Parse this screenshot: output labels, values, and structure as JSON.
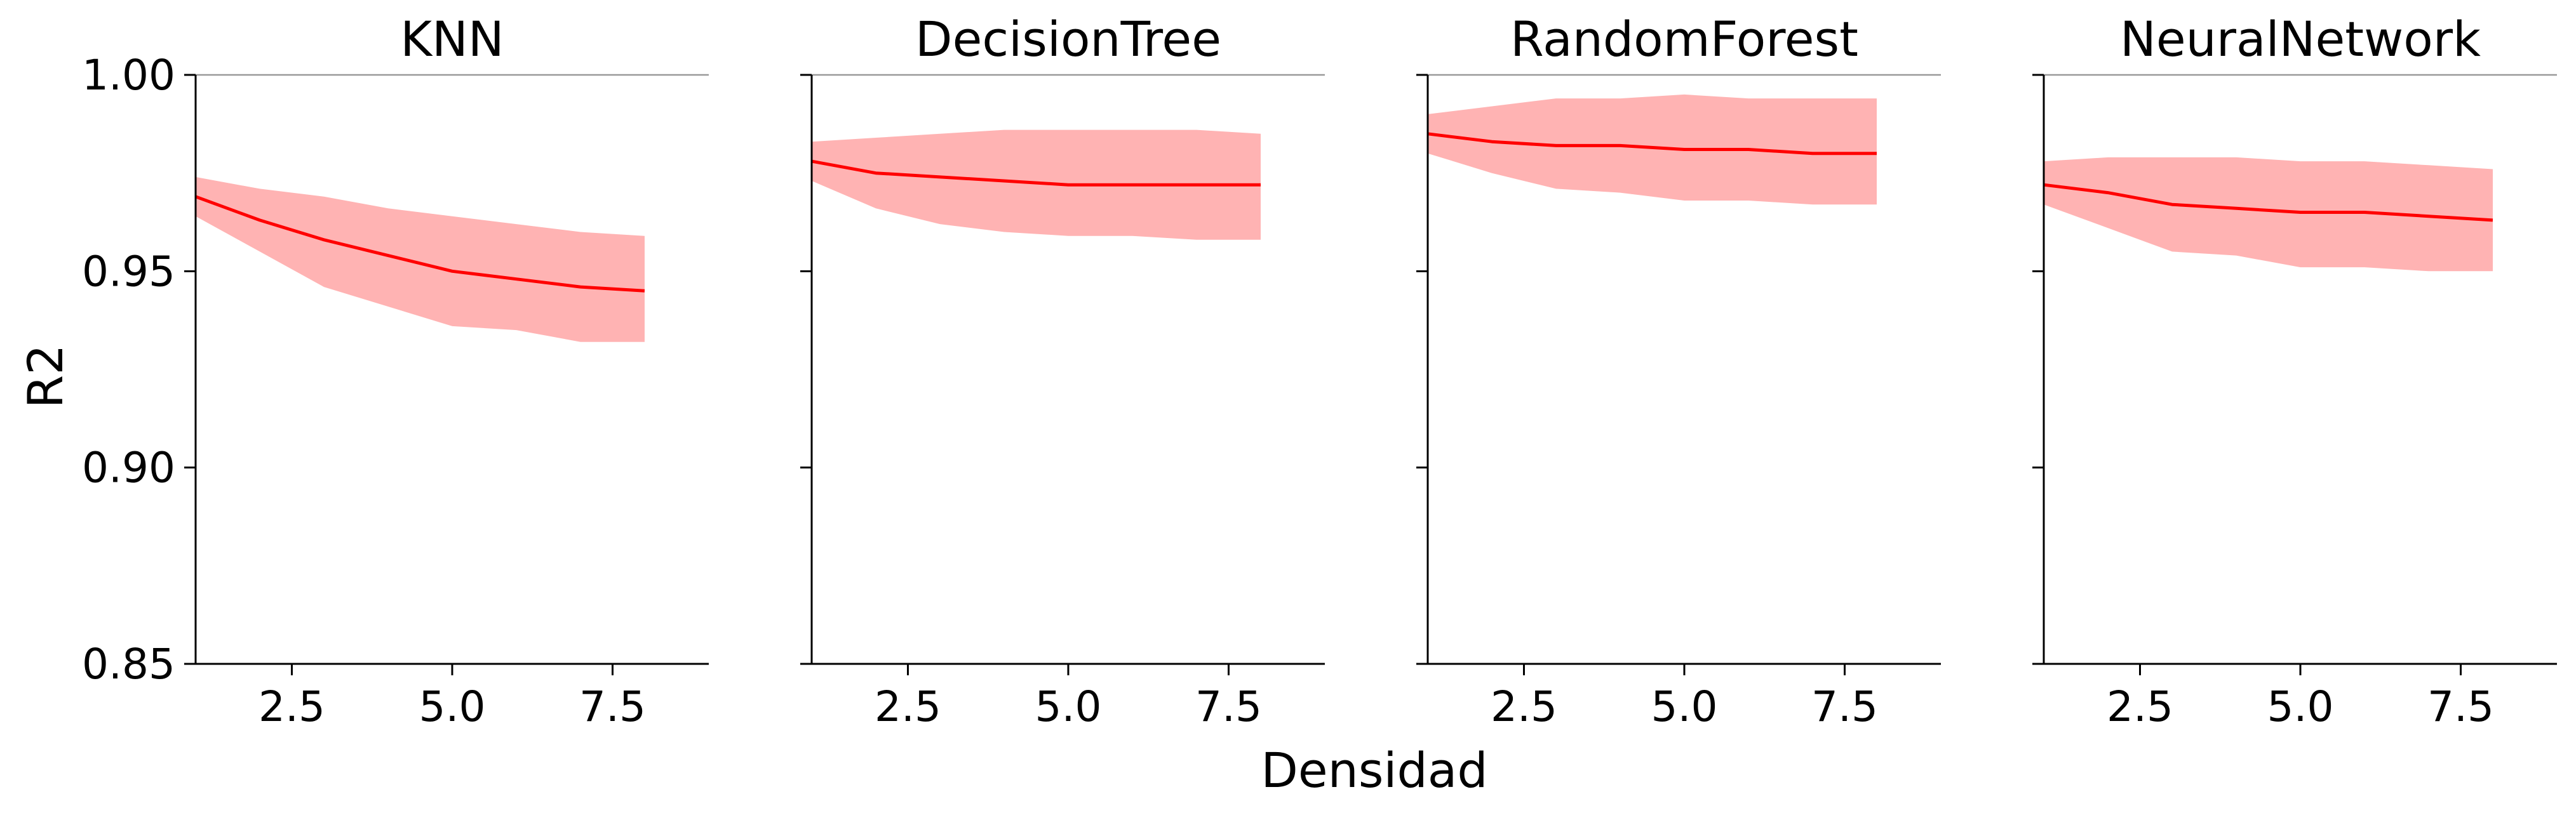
{
  "figure": {
    "xlabel": "Densidad",
    "ylabel": "R2",
    "line_color": "#ff0000",
    "band_color": "#ffb3b3",
    "axis_color": "#000000",
    "top_line_color": "#999999"
  },
  "chart_data": [
    {
      "type": "line",
      "title": "KNN",
      "x": [
        1,
        2,
        3,
        4,
        5,
        6,
        7,
        8
      ],
      "series": [
        {
          "values": [
            0.969,
            0.963,
            0.958,
            0.954,
            0.95,
            0.948,
            0.946,
            0.945
          ],
          "band_upper": [
            0.974,
            0.971,
            0.969,
            0.966,
            0.964,
            0.962,
            0.96,
            0.959
          ],
          "band_lower": [
            0.964,
            0.955,
            0.946,
            0.941,
            0.936,
            0.935,
            0.932,
            0.932
          ]
        }
      ],
      "xlim": [
        1,
        9
      ],
      "ylim": [
        0.85,
        1.0
      ],
      "xticks": [
        2.5,
        5.0,
        7.5
      ],
      "xticklabels": [
        "2.5",
        "5.0",
        "7.5"
      ],
      "yticks": [
        0.85,
        0.9,
        0.95,
        1.0
      ],
      "yticklabels": [
        "0.85",
        "0.90",
        "0.95",
        "1.00"
      ],
      "grid": false
    },
    {
      "type": "line",
      "title": "DecisionTree",
      "x": [
        1,
        2,
        3,
        4,
        5,
        6,
        7,
        8
      ],
      "series": [
        {
          "values": [
            0.978,
            0.975,
            0.974,
            0.973,
            0.972,
            0.972,
            0.972,
            0.972
          ],
          "band_upper": [
            0.983,
            0.984,
            0.985,
            0.986,
            0.986,
            0.986,
            0.986,
            0.985
          ],
          "band_lower": [
            0.973,
            0.966,
            0.962,
            0.96,
            0.959,
            0.959,
            0.958,
            0.958
          ]
        }
      ],
      "xlim": [
        1,
        9
      ],
      "ylim": [
        0.85,
        1.0
      ],
      "xticks": [
        2.5,
        5.0,
        7.5
      ],
      "xticklabels": [
        "2.5",
        "5.0",
        "7.5"
      ],
      "yticks": [
        0.85,
        0.9,
        0.95,
        1.0
      ],
      "yticklabels": [
        "",
        "",
        "",
        ""
      ],
      "grid": false
    },
    {
      "type": "line",
      "title": "RandomForest",
      "x": [
        1,
        2,
        3,
        4,
        5,
        6,
        7,
        8
      ],
      "series": [
        {
          "values": [
            0.985,
            0.983,
            0.982,
            0.982,
            0.981,
            0.981,
            0.98,
            0.98
          ],
          "band_upper": [
            0.99,
            0.992,
            0.994,
            0.994,
            0.995,
            0.994,
            0.994,
            0.994
          ],
          "band_lower": [
            0.98,
            0.975,
            0.971,
            0.97,
            0.968,
            0.968,
            0.967,
            0.967
          ]
        }
      ],
      "xlim": [
        1,
        9
      ],
      "ylim": [
        0.85,
        1.0
      ],
      "xticks": [
        2.5,
        5.0,
        7.5
      ],
      "xticklabels": [
        "2.5",
        "5.0",
        "7.5"
      ],
      "yticks": [
        0.85,
        0.9,
        0.95,
        1.0
      ],
      "yticklabels": [
        "",
        "",
        "",
        ""
      ],
      "grid": false
    },
    {
      "type": "line",
      "title": "NeuralNetwork",
      "x": [
        1,
        2,
        3,
        4,
        5,
        6,
        7,
        8
      ],
      "series": [
        {
          "values": [
            0.972,
            0.97,
            0.967,
            0.966,
            0.965,
            0.965,
            0.964,
            0.963
          ],
          "band_upper": [
            0.978,
            0.979,
            0.979,
            0.979,
            0.978,
            0.978,
            0.977,
            0.976
          ],
          "band_lower": [
            0.967,
            0.961,
            0.955,
            0.954,
            0.951,
            0.951,
            0.95,
            0.95
          ]
        }
      ],
      "xlim": [
        1,
        9
      ],
      "ylim": [
        0.85,
        1.0
      ],
      "xticks": [
        2.5,
        5.0,
        7.5
      ],
      "xticklabels": [
        "2.5",
        "5.0",
        "7.5"
      ],
      "yticks": [
        0.85,
        0.9,
        0.95,
        1.0
      ],
      "yticklabels": [
        "",
        "",
        "",
        ""
      ],
      "grid": false
    }
  ]
}
